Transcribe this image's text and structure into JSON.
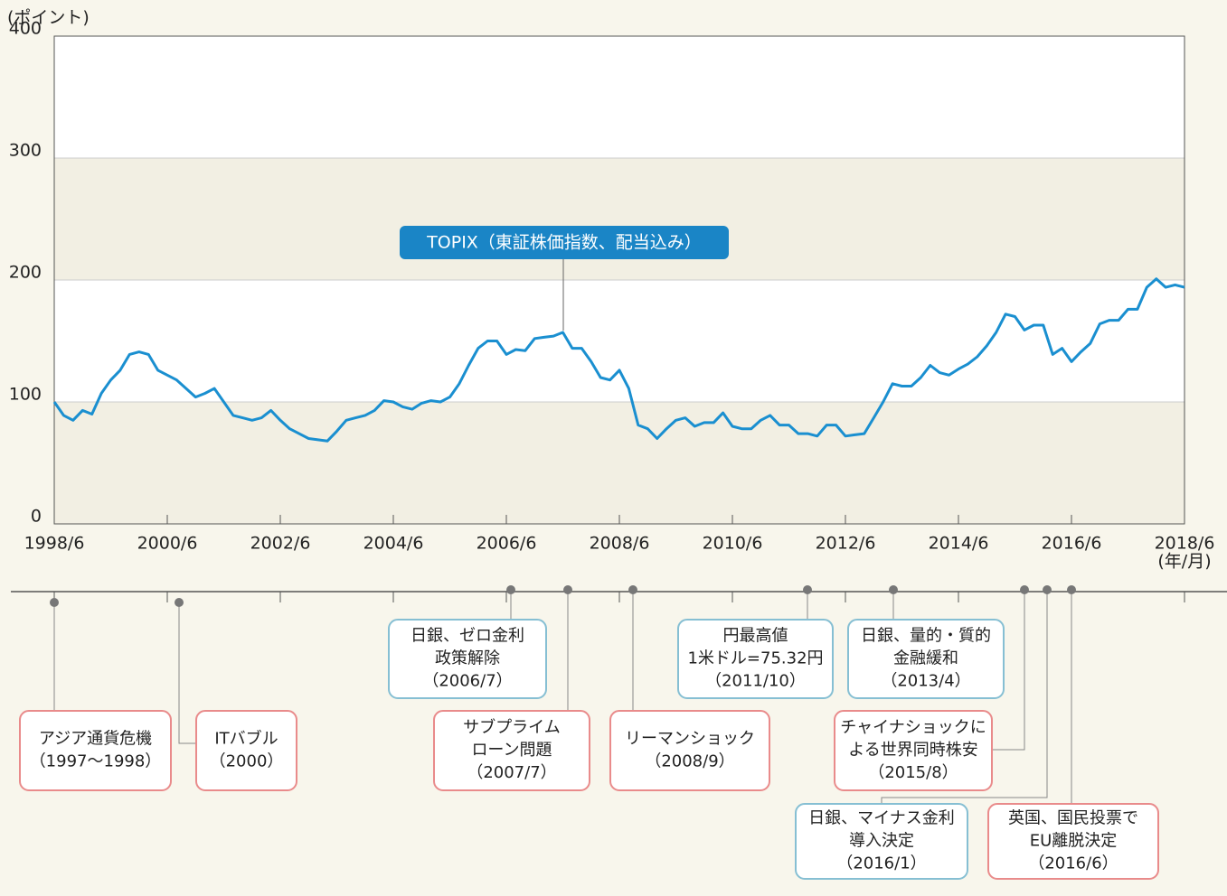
{
  "chart_data": {
    "type": "line",
    "y_label": "(ポイント)",
    "x_label": "(年/月)",
    "annotation": "TOPIX（東証株価指数、配当込み）",
    "ylim": [
      0,
      400
    ],
    "yticks": [
      0,
      100,
      200,
      300,
      400
    ],
    "xlim": [
      "1998/6",
      "2018/6"
    ],
    "xticks": [
      "1998/6",
      "2000/6",
      "2002/6",
      "2004/6",
      "2006/6",
      "2008/6",
      "2010/6",
      "2012/6",
      "2014/6",
      "2016/6",
      "2018/6"
    ],
    "bands": true,
    "series": [
      {
        "name": "TOPIX（東証株価指数、配当込み）",
        "color": "#1a8fd0",
        "x": [
          "1998/6",
          "1998/8",
          "1998/10",
          "1998/12",
          "1999/2",
          "1999/4",
          "1999/6",
          "1999/8",
          "1999/10",
          "1999/12",
          "2000/2",
          "2000/4",
          "2000/6",
          "2000/8",
          "2000/10",
          "2000/12",
          "2001/2",
          "2001/4",
          "2001/6",
          "2001/8",
          "2001/10",
          "2001/12",
          "2002/2",
          "2002/4",
          "2002/6",
          "2002/8",
          "2002/10",
          "2002/12",
          "2003/2",
          "2003/4",
          "2003/6",
          "2003/8",
          "2003/10",
          "2003/12",
          "2004/2",
          "2004/4",
          "2004/6",
          "2004/8",
          "2004/10",
          "2004/12",
          "2005/2",
          "2005/4",
          "2005/6",
          "2005/8",
          "2005/10",
          "2005/12",
          "2006/2",
          "2006/4",
          "2006/6",
          "2006/8",
          "2006/10",
          "2006/12",
          "2007/2",
          "2007/4",
          "2007/6",
          "2007/8",
          "2007/10",
          "2007/12",
          "2008/2",
          "2008/4",
          "2008/6",
          "2008/8",
          "2008/10",
          "2008/12",
          "2009/2",
          "2009/4",
          "2009/6",
          "2009/8",
          "2009/10",
          "2009/12",
          "2010/2",
          "2010/4",
          "2010/6",
          "2010/8",
          "2010/10",
          "2010/12",
          "2011/2",
          "2011/4",
          "2011/6",
          "2011/8",
          "2011/10",
          "2011/12",
          "2012/2",
          "2012/4",
          "2012/6",
          "2012/8",
          "2012/10",
          "2012/12",
          "2013/2",
          "2013/4",
          "2013/6",
          "2013/8",
          "2013/10",
          "2013/12",
          "2014/2",
          "2014/4",
          "2014/6",
          "2014/8",
          "2014/10",
          "2014/12",
          "2015/2",
          "2015/4",
          "2015/6",
          "2015/8",
          "2015/10",
          "2015/12",
          "2016/2",
          "2016/4",
          "2016/6",
          "2016/8",
          "2016/10",
          "2016/12",
          "2017/2",
          "2017/4",
          "2017/6",
          "2017/8",
          "2017/10",
          "2017/12",
          "2018/2",
          "2018/4",
          "2018/6"
        ],
        "values": [
          100,
          89,
          85,
          93,
          90,
          107,
          118,
          126,
          139,
          141,
          139,
          126,
          122,
          118,
          111,
          104,
          107,
          111,
          100,
          89,
          87,
          85,
          87,
          93,
          85,
          78,
          74,
          70,
          69,
          68,
          76,
          85,
          87,
          89,
          93,
          101,
          100,
          96,
          94,
          99,
          101,
          100,
          104,
          115,
          130,
          144,
          150,
          150,
          139,
          143,
          142,
          152,
          153,
          154,
          157,
          144,
          144,
          133,
          120,
          118,
          126,
          111,
          81,
          78,
          70,
          78,
          85,
          87,
          80,
          83,
          83,
          91,
          80,
          78,
          78,
          85,
          89,
          81,
          81,
          74,
          74,
          72,
          81,
          81,
          72,
          73,
          74,
          87,
          100,
          115,
          113,
          113,
          120,
          130,
          124,
          122,
          127,
          131,
          137,
          146,
          157,
          172,
          170,
          159,
          163,
          163,
          139,
          144,
          133,
          141,
          148,
          164,
          167,
          167,
          176,
          176,
          194,
          201,
          194,
          196,
          194
        ]
      }
    ]
  },
  "events": [
    {
      "lines": [
        "アジア通貨危機",
        "（1997〜1998）"
      ],
      "color": "#e98b8b"
    },
    {
      "lines": [
        "ITバブル",
        "（2000）"
      ],
      "color": "#e98b8b"
    },
    {
      "lines": [
        "日銀、ゼロ金利",
        "政策解除",
        "（2006/7）"
      ],
      "color": "#86bfd3"
    },
    {
      "lines": [
        "サブプライム",
        "ローン問題",
        "（2007/7）"
      ],
      "color": "#e98b8b"
    },
    {
      "lines": [
        "リーマンショック",
        "（2008/9）"
      ],
      "color": "#e98b8b"
    },
    {
      "lines": [
        "円最高値",
        "1米ドル=75.32円",
        "（2011/10）"
      ],
      "color": "#86bfd3"
    },
    {
      "lines": [
        "日銀、量的・質的",
        "金融緩和",
        "（2013/4）"
      ],
      "color": "#86bfd3"
    },
    {
      "lines": [
        "チャイナショックに",
        "よる世界同時株安",
        "（2015/8）"
      ],
      "color": "#e98b8b"
    },
    {
      "lines": [
        "日銀、マイナス金利",
        "導入決定",
        "（2016/1）"
      ],
      "color": "#86bfd3"
    },
    {
      "lines": [
        "英国、国民投票で",
        "EU離脱決定",
        "（2016/6）"
      ],
      "color": "#e98b8b"
    }
  ]
}
